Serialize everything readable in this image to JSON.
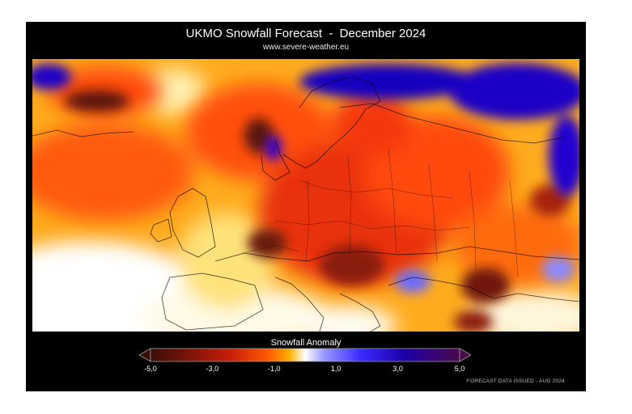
{
  "header": {
    "title": "UKMO Snowfall Forecast  -  December 2024",
    "subtitle": "www.severe-weather.eu"
  },
  "legend": {
    "title": "Snowfall Anomaly",
    "ticks": [
      {
        "value": -5.0,
        "label": "-5,0"
      },
      {
        "value": -3.0,
        "label": "-3,0"
      },
      {
        "value": -1.0,
        "label": "-1,0"
      },
      {
        "value": 1.0,
        "label": "1,0"
      },
      {
        "value": 3.0,
        "label": "3,0"
      },
      {
        "value": 5.0,
        "label": "5,0"
      }
    ],
    "range": [
      -5.0,
      5.0
    ],
    "colors": {
      "strong_negative": "#3a0e08",
      "negative": "#c81e0a",
      "mild_negative": "#ff8a00",
      "neutral": "#ffffff",
      "mild_positive": "#6a6aff",
      "positive": "#1d00c8",
      "strong_positive": "#4a0a4a"
    }
  },
  "footer": {
    "issued": "FORECAST DATA ISSUED - AUG 2024"
  },
  "map": {
    "region": "Europe",
    "field": "snowfall anomaly"
  }
}
